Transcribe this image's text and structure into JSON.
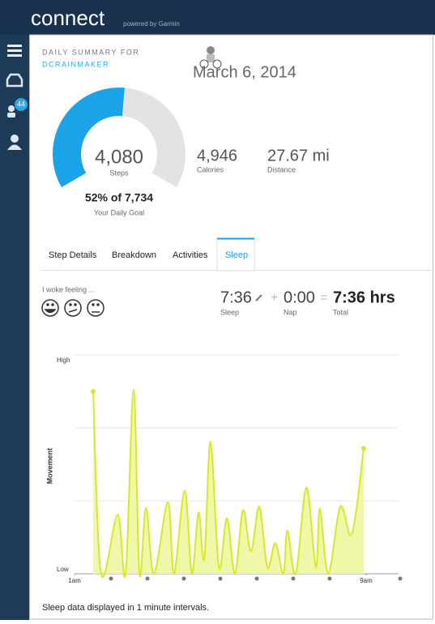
{
  "header": {
    "logo": "connect",
    "tagline": "powered by Garmin"
  },
  "nav": {
    "badge": "44"
  },
  "summary": {
    "label": "DAILY SUMMARY FOR",
    "user": "DCRAINMAKER",
    "date": "March 6, 2014"
  },
  "gauge": {
    "steps": "4,080",
    "steps_label": "Steps",
    "percent": 52,
    "goal": "52% of 7,734",
    "goal_label": "Your Daily Goal"
  },
  "stats": [
    {
      "value": "4,946",
      "label": "Calories"
    },
    {
      "value": "27.67 mi",
      "label": "Distance"
    }
  ],
  "tabs": {
    "items": [
      "Step Details",
      "Breakdown",
      "Activities",
      "Sleep"
    ],
    "active": 3
  },
  "sleep": {
    "feeling_label": "I woke feeling ...",
    "sleep_time": "7:36",
    "sleep_label": "Sleep",
    "plus": "+",
    "nap": "0:00",
    "nap_label": "Nap",
    "equals": "=",
    "total": "7:36 hrs",
    "total_label": "Total"
  },
  "chart_data": {
    "type": "area",
    "y_label": "Movement",
    "color": "#d6e82a",
    "x": [
      1.51,
      1.73,
      2.18,
      2.4,
      2.62,
      2.78,
      2.96,
      3.18,
      3.56,
      3.73,
      4.02,
      4.22,
      4.4,
      4.56,
      4.73,
      4.96,
      5.18,
      5.4,
      5.62,
      5.84,
      6.07,
      6.29,
      6.51,
      6.73,
      6.84,
      7.07,
      7.36,
      7.62,
      7.73,
      7.96,
      8.29,
      8.56,
      8.73,
      8.93
    ],
    "values": [
      2.5,
      0,
      0.81,
      0,
      2.52,
      0,
      0.9,
      0,
      0.98,
      0,
      1.14,
      0,
      0.84,
      0.2,
      1.81,
      0.09,
      0.76,
      0,
      0.87,
      0.31,
      0.92,
      0.09,
      0.42,
      0,
      0.59,
      0,
      1.18,
      0.09,
      0.89,
      0,
      0.92,
      0.53,
      0.87,
      1.72
    ],
    "xlim": [
      1,
      9.9
    ],
    "ylim": [
      0,
      3
    ],
    "xticks": [
      {
        "value": 1,
        "label": "1am"
      },
      {
        "value": 9,
        "label": "9am"
      }
    ],
    "yticks": [
      {
        "value": 0,
        "label": "Low"
      },
      {
        "value": 3,
        "label": "High"
      }
    ]
  },
  "footer": "Sleep data displayed in 1 minute intervals."
}
